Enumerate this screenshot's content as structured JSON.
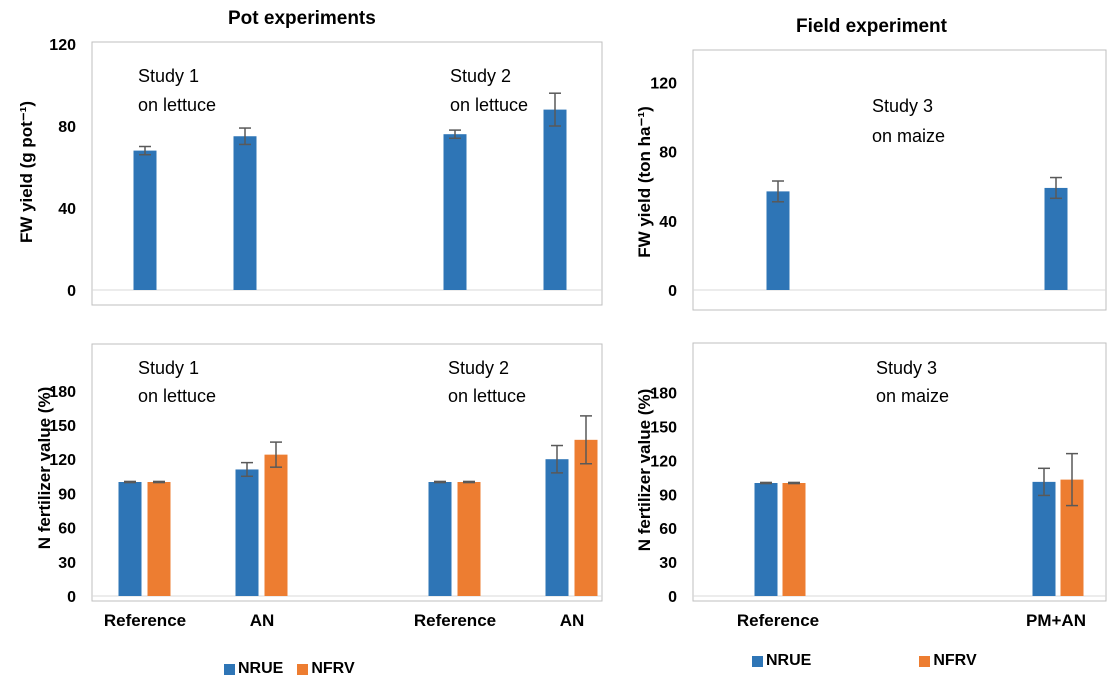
{
  "headings": {
    "pot": "Pot experiments",
    "field": "Field experiment"
  },
  "colors": {
    "nrue": "#2e75b6",
    "nfrv": "#ed7d31",
    "error_bar": "#595959",
    "frame": "#bfbfbf",
    "axis": "#d9d9d9"
  },
  "legend": {
    "pot": [
      {
        "name": "NRUE",
        "color": "#2e75b6"
      },
      {
        "name": "NFRV",
        "color": "#ed7d31"
      }
    ],
    "field": [
      {
        "name": "NRUE",
        "color": "#2e75b6"
      },
      {
        "name": "NFRV",
        "color": "#ed7d31"
      }
    ]
  },
  "chart_data": [
    {
      "id": "pot_yield",
      "type": "bar",
      "ylabel": "FW yield (g pot⁻¹)",
      "ylim": [
        0,
        140
      ],
      "yticks": [
        0,
        40,
        80,
        120
      ],
      "categories": [
        "Reference",
        "AN",
        "Reference",
        "AN"
      ],
      "show_category_labels": false,
      "series": [
        {
          "name": "NRUE",
          "values": [
            68,
            75,
            76,
            88
          ],
          "errors": [
            2,
            4,
            2,
            8
          ]
        }
      ],
      "annotations": [
        {
          "lines": [
            "Study 1",
            "on lettuce"
          ]
        },
        {
          "lines": [
            "Study 2",
            "on lettuce"
          ]
        }
      ]
    },
    {
      "id": "pot_nfv",
      "type": "bar",
      "ylabel": "N fertilizer value (%)",
      "ylim": [
        0,
        195
      ],
      "yticks": [
        0,
        30,
        60,
        90,
        120,
        150,
        180
      ],
      "categories": [
        "Reference",
        "AN",
        "Reference",
        "AN"
      ],
      "show_category_labels": true,
      "series": [
        {
          "name": "NRUE",
          "values": [
            100,
            111,
            100,
            120
          ],
          "errors": [
            0.5,
            6,
            0.5,
            12
          ]
        },
        {
          "name": "NFRV",
          "values": [
            100,
            124,
            100,
            137
          ],
          "errors": [
            0.5,
            11,
            0.5,
            21
          ]
        }
      ],
      "annotations": [
        {
          "lines": [
            "Study 1",
            "on lettuce"
          ]
        },
        {
          "lines": [
            "Study 2",
            "on lettuce"
          ]
        }
      ]
    },
    {
      "id": "field_yield",
      "type": "bar",
      "ylabel": "FW yield (ton ha⁻¹)",
      "ylim": [
        0,
        140
      ],
      "yticks": [
        0,
        40,
        80,
        120
      ],
      "categories": [
        "Reference",
        "PM+AN"
      ],
      "show_category_labels": false,
      "series": [
        {
          "name": "NRUE",
          "values": [
            57,
            59
          ],
          "errors": [
            6,
            6
          ]
        }
      ],
      "annotations": [
        {
          "lines": [
            "Study 3",
            "on maize"
          ]
        }
      ]
    },
    {
      "id": "field_nfv",
      "type": "bar",
      "ylabel": "N fertilizer value (%)",
      "ylim": [
        0,
        195
      ],
      "yticks": [
        0,
        30,
        60,
        90,
        120,
        150,
        180
      ],
      "categories": [
        "Reference",
        "PM+AN"
      ],
      "show_category_labels": true,
      "series": [
        {
          "name": "NRUE",
          "values": [
            100,
            101
          ],
          "errors": [
            0.5,
            12
          ]
        },
        {
          "name": "NFRV",
          "values": [
            100,
            103
          ],
          "errors": [
            0.5,
            23
          ]
        }
      ],
      "annotations": [
        {
          "lines": [
            "Study 3",
            "on maize"
          ]
        }
      ]
    }
  ]
}
